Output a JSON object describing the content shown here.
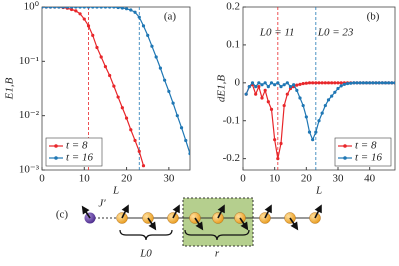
{
  "chart_data": [
    {
      "type": "line",
      "panel": "(a)",
      "ylabel": "E1,B",
      "xlabel": "L",
      "log_y": true,
      "legend": "lower left",
      "x": [
        0,
        1,
        2,
        3,
        4,
        5,
        6,
        7,
        8,
        9,
        10,
        11,
        12,
        13,
        14,
        15,
        16,
        17,
        18,
        19,
        20,
        21,
        22,
        23,
        24,
        25,
        26,
        27,
        28,
        29,
        30,
        31,
        32,
        33,
        34,
        35
      ],
      "series": [
        {
          "name": "t = 8",
          "color": "#e8262a",
          "values": [
            1,
            1,
            1,
            1,
            1,
            0.98,
            0.95,
            0.9,
            0.85,
            0.75,
            0.6,
            0.45,
            0.3,
            0.18,
            0.12,
            0.08,
            0.055,
            0.035,
            0.022,
            0.014,
            0.009,
            0.0055,
            0.0035,
            0.0022,
            0.0012,
            null,
            null,
            null,
            null,
            null,
            null,
            null,
            null,
            null,
            null,
            null
          ]
        },
        {
          "name": "t = 16",
          "color": "#1f77b4",
          "values": [
            1,
            1,
            1,
            1,
            1,
            1,
            1,
            1,
            1,
            1,
            1,
            1,
            1,
            1,
            1,
            1,
            1,
            1,
            0.98,
            0.96,
            0.93,
            0.88,
            0.8,
            0.65,
            0.45,
            0.3,
            0.19,
            0.12,
            0.075,
            0.045,
            0.028,
            0.017,
            0.01,
            0.006,
            0.0035,
            0.002
          ]
        }
      ],
      "vlines": [
        {
          "x": 11,
          "color": "#e8262a"
        },
        {
          "x": 23,
          "color": "#1f77b4"
        }
      ],
      "xlim": [
        0,
        35
      ],
      "xticks": [
        0,
        10,
        20,
        30
      ],
      "ylim": [
        0.001,
        1
      ],
      "yticks": [
        {
          "value": 0.001,
          "label": "10⁻³"
        },
        {
          "value": 0.01,
          "label": "10⁻²"
        },
        {
          "value": 0.1,
          "label": "10⁻¹"
        },
        {
          "value": 1,
          "label": "10⁰"
        }
      ]
    },
    {
      "type": "line",
      "panel": "(b)",
      "ylabel": "dE1,B",
      "xlabel": "L",
      "log_y": false,
      "legend": "lower right",
      "x": [
        1,
        2,
        3,
        4,
        5,
        6,
        7,
        8,
        9,
        10,
        11,
        12,
        13,
        14,
        15,
        16,
        17,
        18,
        19,
        20,
        21,
        22,
        23,
        24,
        25,
        26,
        27,
        28,
        29,
        30,
        31,
        32,
        33,
        34,
        35,
        36,
        37,
        38,
        39,
        40,
        41,
        42,
        43,
        44,
        45,
        46,
        47,
        48
      ],
      "series": [
        {
          "name": "t = 8",
          "color": "#e8262a",
          "values": [
            -0.03,
            -0.01,
            -0.005,
            -0.03,
            -0.01,
            -0.04,
            -0.02,
            -0.05,
            -0.07,
            -0.15,
            -0.2,
            -0.16,
            -0.06,
            -0.03,
            -0.015,
            -0.01,
            -0.006,
            -0.004,
            -0.002,
            -0.001,
            0,
            0,
            0,
            0,
            0,
            0,
            0,
            0,
            0,
            0,
            0,
            0,
            0,
            0,
            0,
            0,
            0,
            0,
            0,
            0,
            0,
            0,
            0,
            0,
            0,
            0,
            0,
            0
          ]
        },
        {
          "name": "t = 16",
          "color": "#1f77b4",
          "values": [
            -0.03,
            -0.01,
            0,
            -0.01,
            0,
            -0.005,
            0,
            -0.01,
            0,
            -0.005,
            0,
            -0.01,
            -0.005,
            0,
            -0.01,
            -0.005,
            -0.02,
            -0.04,
            -0.06,
            -0.09,
            -0.13,
            -0.15,
            -0.13,
            -0.1,
            -0.08,
            -0.06,
            -0.045,
            -0.035,
            -0.025,
            -0.015,
            -0.008,
            -0.004,
            -0.002,
            -0.001,
            0,
            0,
            0,
            0,
            0,
            0,
            0,
            0,
            0,
            0,
            0,
            0,
            0,
            0
          ]
        }
      ],
      "vlines": [
        {
          "x": 11,
          "color": "#e8262a",
          "label": "L0 = 11"
        },
        {
          "x": 23,
          "color": "#1f77b4",
          "label": "L0 = 23"
        }
      ],
      "xlim": [
        0,
        48
      ],
      "xticks": [
        0,
        10,
        20,
        30,
        40
      ],
      "ylim": [
        -0.23,
        0.2
      ],
      "yticks": [
        -0.2,
        -0.1,
        0,
        0.1,
        0.2
      ]
    }
  ],
  "diagram": {
    "label": "(c)",
    "coupling": "J′",
    "left_brace": "L0",
    "right_brace": "r"
  }
}
